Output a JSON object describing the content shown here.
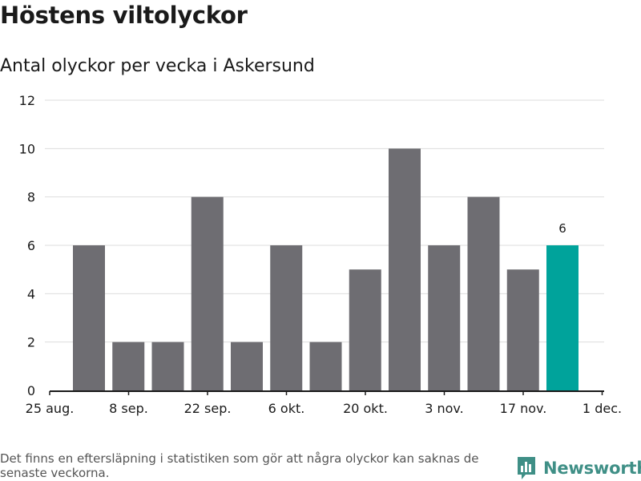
{
  "header": {
    "title": "Höstens viltolyckor",
    "subtitle": "Antal olyckor per vecka i Askersund"
  },
  "chart_data": {
    "type": "bar",
    "title": "Höstens viltolyckor",
    "subtitle": "Antal olyckor per vecka i Askersund",
    "xlabel": "",
    "ylabel": "",
    "ylim": [
      0,
      12
    ],
    "yticks": [
      0,
      2,
      4,
      6,
      8,
      10,
      12
    ],
    "xtick_labels": [
      "25 aug.",
      "8 sep.",
      "22 sep.",
      "6 okt.",
      "20 okt.",
      "3 nov.",
      "17 nov.",
      "1 dec."
    ],
    "values": [
      6,
      2,
      2,
      8,
      2,
      6,
      2,
      5,
      10,
      6,
      8,
      5,
      6
    ],
    "highlight_index": 12,
    "highlight_label": "6",
    "grid": true,
    "colors": {
      "bar": "#6e6d72",
      "highlight": "#00a39b",
      "grid": "#dddddd",
      "axis": "#1a1a1a"
    }
  },
  "footer": {
    "note": "Det finns en eftersläpning i statistiken som gör att några olyckor kan saknas de senaste veckorna.",
    "brand": "Newsworthy",
    "brand_icon": "newsworthy-logo-icon",
    "brand_color": "#3f8f86"
  }
}
